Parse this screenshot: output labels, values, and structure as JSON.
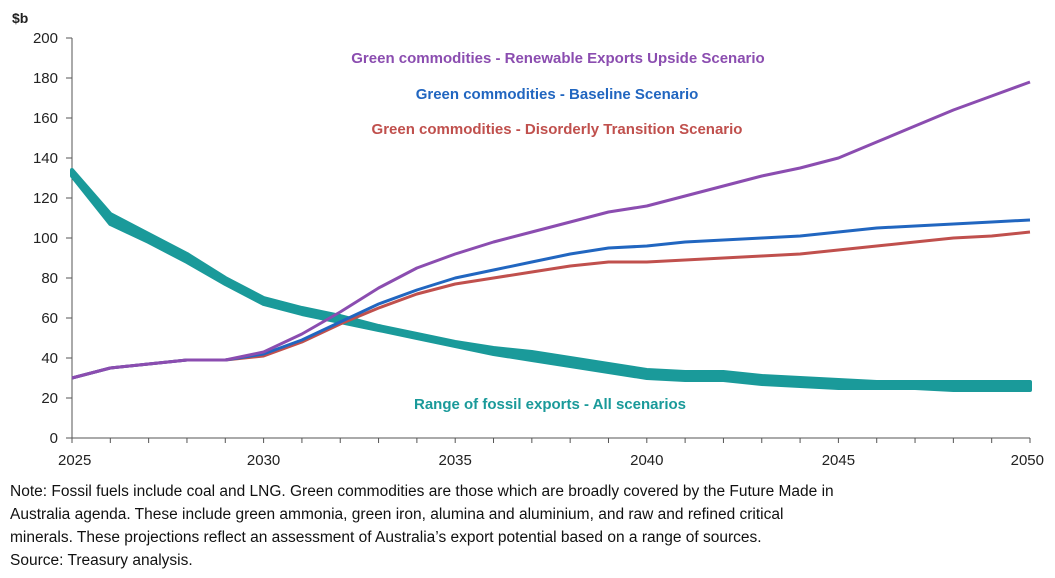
{
  "chart_data": {
    "type": "line",
    "unit_label": "$b",
    "ylim": [
      0,
      200
    ],
    "yticks": [
      0,
      20,
      40,
      60,
      80,
      100,
      120,
      140,
      160,
      180,
      200
    ],
    "xlim": [
      2025,
      2050
    ],
    "xticks": [
      2025,
      2030,
      2035,
      2040,
      2045,
      2050
    ],
    "grid": false,
    "series": [
      {
        "name": "Green commodities  - Renewable  Exports  Upside  Scenario",
        "color": "#8B4DB0",
        "x": [
          2025,
          2026,
          2027,
          2028,
          2029,
          2030,
          2031,
          2032,
          2033,
          2034,
          2035,
          2036,
          2037,
          2038,
          2039,
          2040,
          2041,
          2042,
          2043,
          2044,
          2045,
          2046,
          2047,
          2048,
          2049,
          2050
        ],
        "values": [
          30,
          35,
          37,
          39,
          39,
          43,
          52,
          63,
          75,
          85,
          92,
          98,
          103,
          108,
          113,
          116,
          121,
          126,
          131,
          135,
          140,
          148,
          156,
          164,
          171,
          178
        ]
      },
      {
        "name": "Green commodities  - Baseline  Scenario",
        "color": "#2166C0",
        "x": [
          2025,
          2026,
          2027,
          2028,
          2029,
          2030,
          2031,
          2032,
          2033,
          2034,
          2035,
          2036,
          2037,
          2038,
          2039,
          2040,
          2041,
          2042,
          2043,
          2044,
          2045,
          2046,
          2047,
          2048,
          2049,
          2050
        ],
        "values": [
          30,
          35,
          37,
          39,
          39,
          42,
          49,
          58,
          67,
          74,
          80,
          84,
          88,
          92,
          95,
          96,
          98,
          99,
          100,
          101,
          103,
          105,
          106,
          107,
          108,
          109
        ]
      },
      {
        "name": "Green commodities  - Disorderly  Transition  Scenario",
        "color": "#C0504D",
        "x": [
          2025,
          2026,
          2027,
          2028,
          2029,
          2030,
          2031,
          2032,
          2033,
          2034,
          2035,
          2036,
          2037,
          2038,
          2039,
          2040,
          2041,
          2042,
          2043,
          2044,
          2045,
          2046,
          2047,
          2048,
          2049,
          2050
        ],
        "values": [
          30,
          35,
          37,
          39,
          39,
          41,
          48,
          57,
          65,
          72,
          77,
          80,
          83,
          86,
          88,
          88,
          89,
          90,
          91,
          92,
          94,
          96,
          98,
          100,
          101,
          103
        ]
      },
      {
        "name": "Range of fossil exports - All scenarios",
        "color": "#1A9A9A",
        "x": [
          2025,
          2026,
          2027,
          2028,
          2029,
          2030,
          2031,
          2032,
          2033,
          2034,
          2035,
          2036,
          2037,
          2038,
          2039,
          2040,
          2041,
          2042,
          2043,
          2044,
          2045,
          2046,
          2047,
          2048,
          2049,
          2050
        ],
        "low": [
          131,
          107,
          98,
          88,
          77,
          67,
          62,
          58,
          54,
          50,
          46,
          42,
          39,
          36,
          33,
          30,
          29,
          29,
          27,
          26,
          25,
          25,
          25,
          24,
          24,
          24
        ],
        "high": [
          134,
          112,
          102,
          92,
          80,
          70,
          65,
          61,
          56,
          52,
          48,
          45,
          43,
          40,
          37,
          34,
          33,
          33,
          31,
          30,
          29,
          28,
          28,
          28,
          28,
          28
        ]
      }
    ]
  },
  "notes": {
    "line1": "Note: Fossil fuels include coal and LNG. Green commodities are those which are broadly covered by the Future Made in",
    "line2": "Australia agenda. These include green ammonia, green iron, alumina and aluminium, and raw and refined critical",
    "line3": "minerals. These projections reflect an assessment of Australia’s export potential based on a range of sources.",
    "source": "Source: Treasury analysis."
  }
}
